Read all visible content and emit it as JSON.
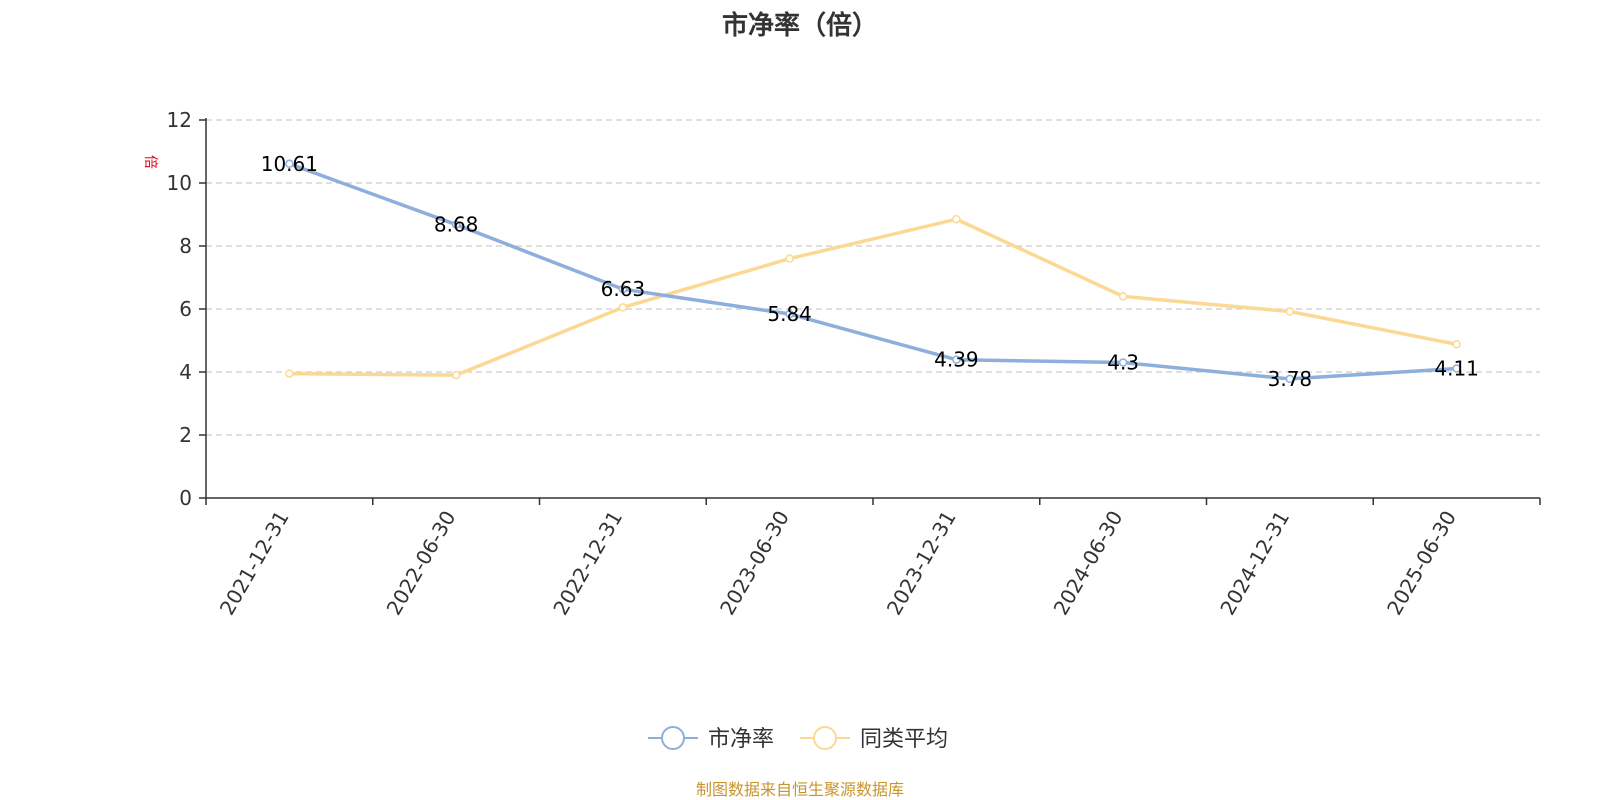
{
  "chart_data": {
    "type": "line",
    "title": "市净率（倍）",
    "ylabel": "倍",
    "categories": [
      "2021-12-31",
      "2022-06-30",
      "2022-12-31",
      "2023-06-30",
      "2023-12-31",
      "2024-06-30",
      "2024-12-31",
      "2025-06-30"
    ],
    "series": [
      {
        "name": "市净率",
        "values": [
          10.61,
          8.68,
          6.63,
          5.84,
          4.39,
          4.3,
          3.78,
          4.11
        ],
        "labels": [
          "10.61",
          "8.68",
          "6.63",
          "5.84",
          "4.39",
          "4.3",
          "3.78",
          "4.11"
        ],
        "color": "#8eaedb"
      },
      {
        "name": "同类平均",
        "values": [
          3.95,
          3.9,
          6.05,
          7.6,
          8.85,
          6.4,
          5.92,
          4.88
        ],
        "color": "#fbd994"
      }
    ],
    "ylim": [
      0,
      12
    ],
    "yticks": [
      "0",
      "2",
      "4",
      "6",
      "8",
      "10",
      "12"
    ],
    "grid": true,
    "legend_position": "bottom"
  },
  "source_note": "制图数据来自恒生聚源数据库",
  "colors": {
    "axis": "#333333",
    "grid": "#cccccc",
    "unit": "#e60012",
    "source": "#c8952c"
  }
}
